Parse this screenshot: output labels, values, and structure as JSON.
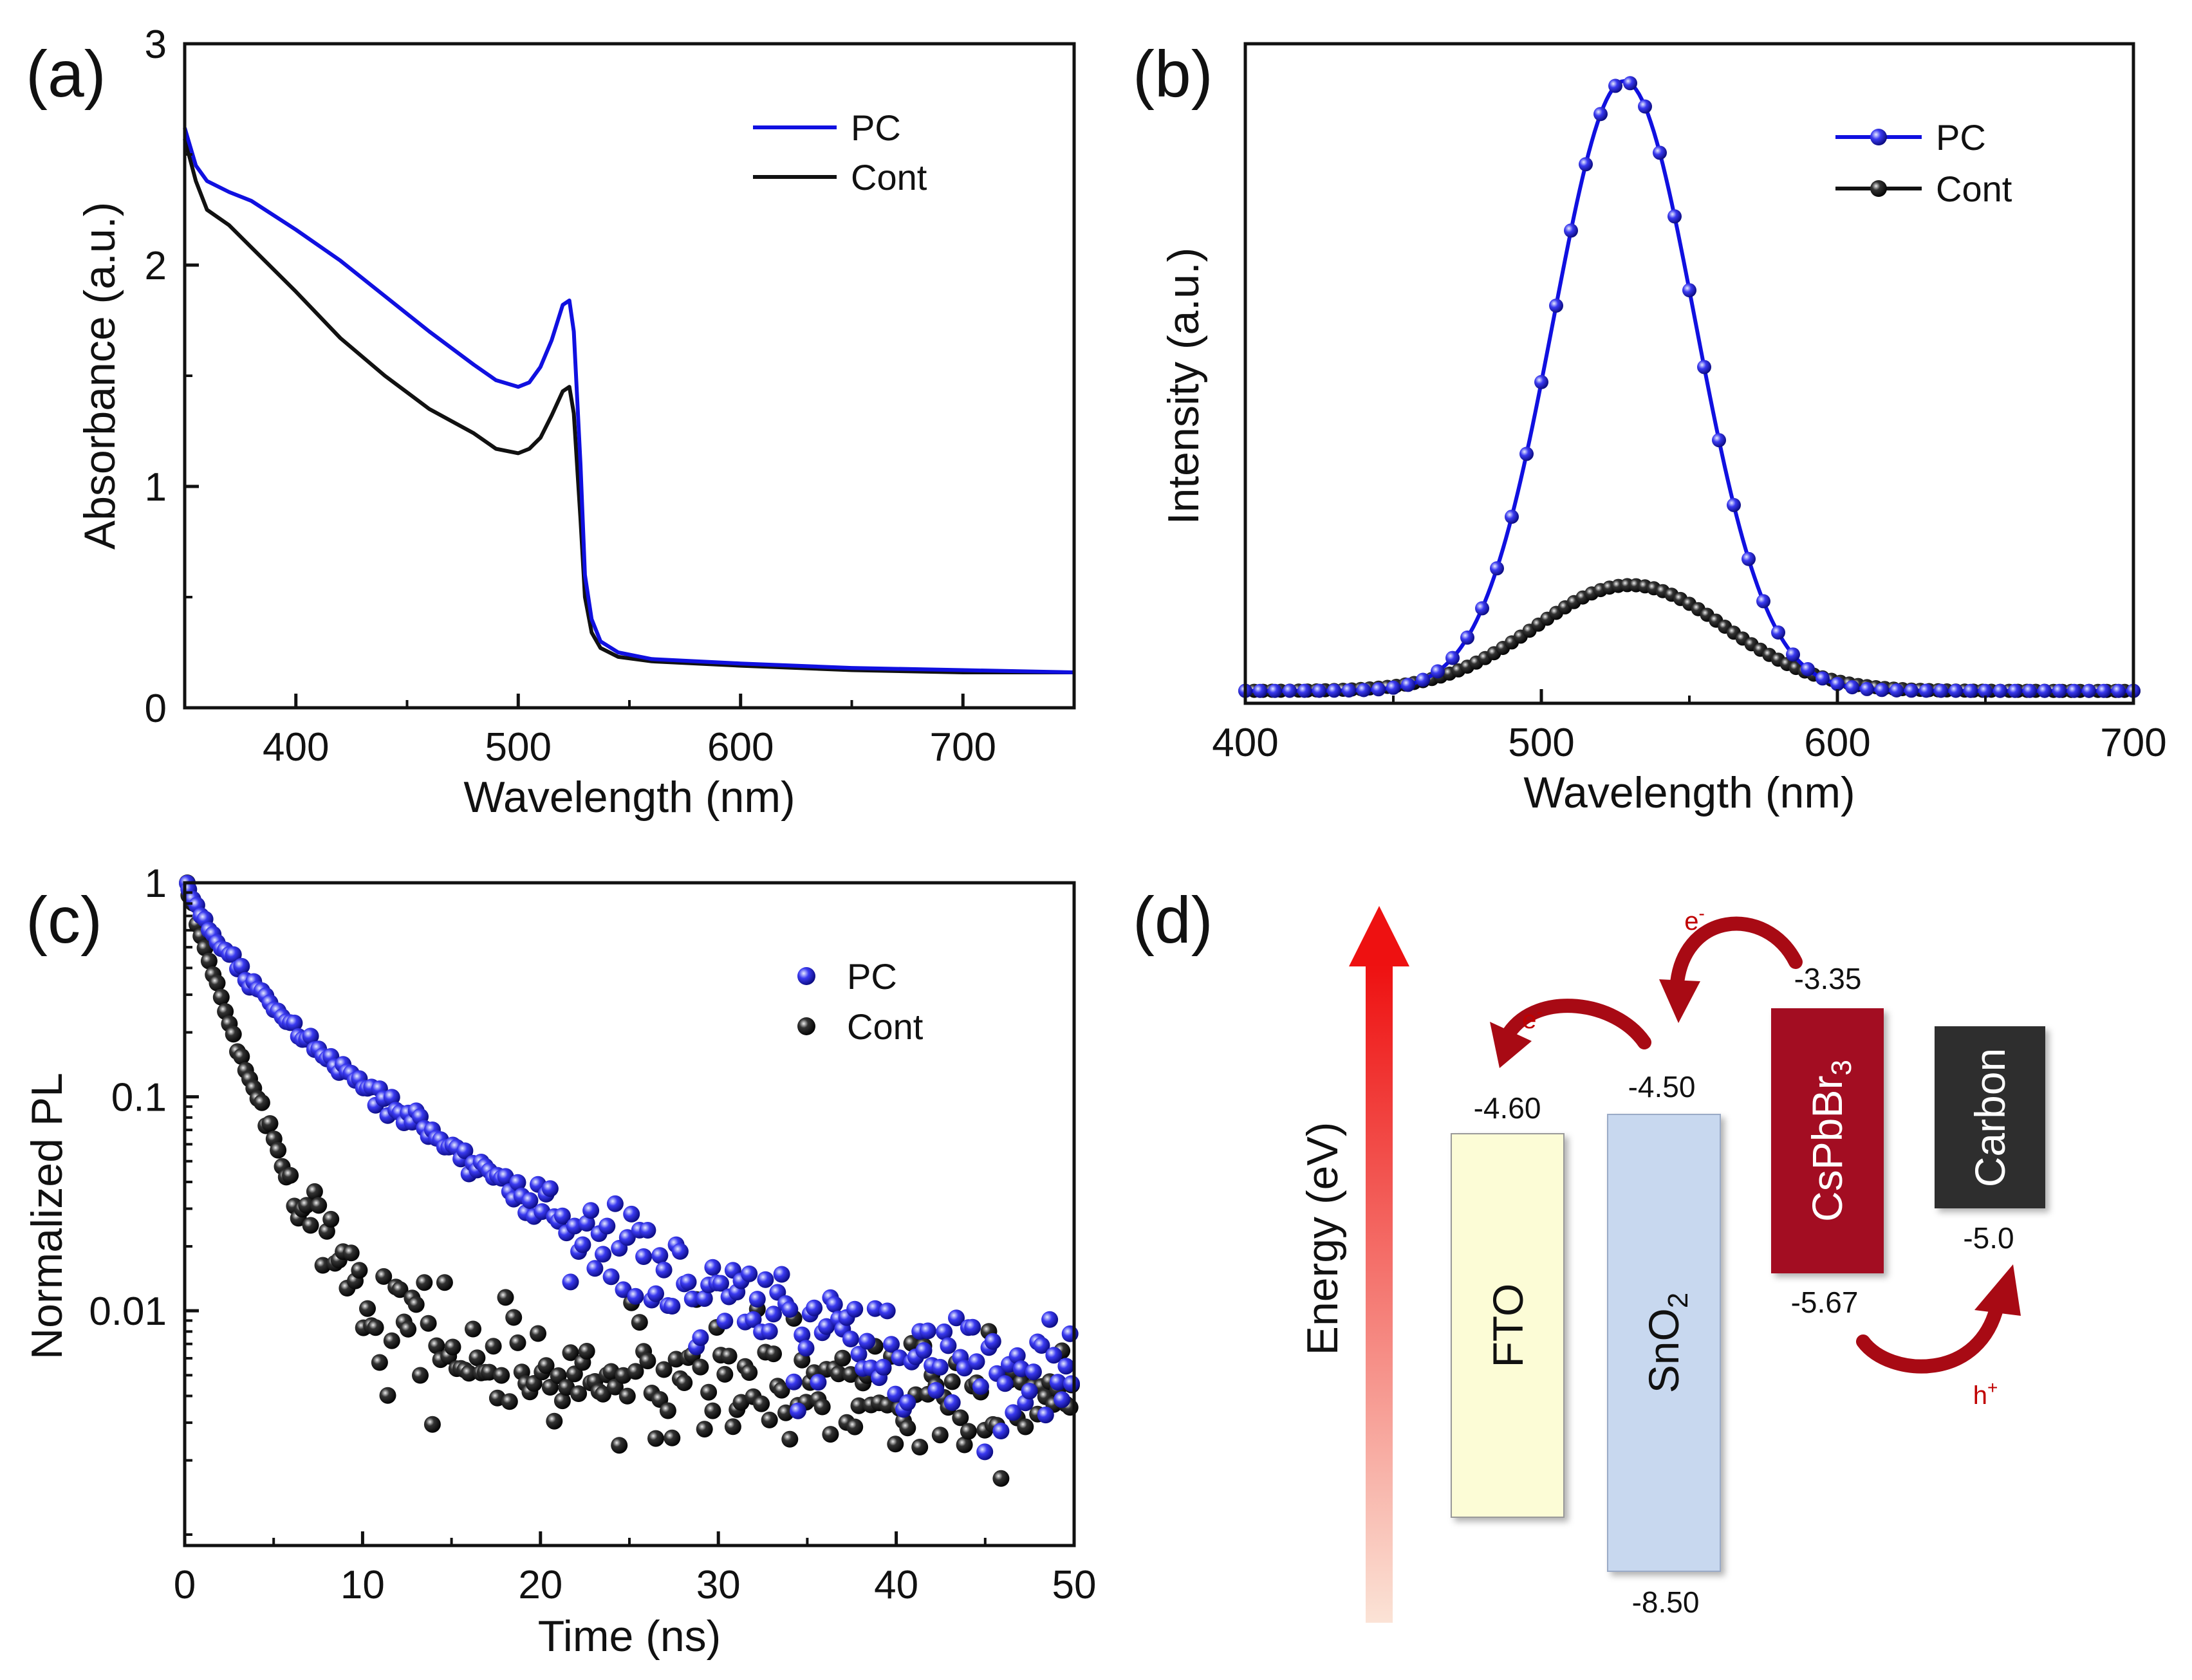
{
  "chart_data": [
    {
      "id": "a",
      "panel_label": "(a)",
      "type": "line",
      "xlabel": "Wavelength (nm)",
      "ylabel": "Absorbance (a.u.)",
      "xlim": [
        350,
        750
      ],
      "ylim": [
        0,
        3
      ],
      "xticks": [
        400,
        500,
        600,
        700
      ],
      "yticks": [
        0,
        1,
        2,
        3
      ],
      "legend_position": "top-right",
      "series": [
        {
          "name": "PC",
          "color": "#1010e0",
          "x": [
            350,
            355,
            360,
            370,
            380,
            400,
            420,
            440,
            460,
            480,
            490,
            500,
            505,
            510,
            515,
            520,
            523,
            525,
            528,
            530,
            533,
            537,
            545,
            560,
            600,
            650,
            700,
            750
          ],
          "y": [
            2.62,
            2.45,
            2.38,
            2.33,
            2.29,
            2.16,
            2.02,
            1.86,
            1.7,
            1.55,
            1.48,
            1.45,
            1.47,
            1.54,
            1.66,
            1.82,
            1.84,
            1.7,
            1.1,
            0.6,
            0.4,
            0.3,
            0.25,
            0.22,
            0.2,
            0.18,
            0.17,
            0.16
          ]
        },
        {
          "name": "Cont",
          "color": "#111111",
          "x": [
            350,
            355,
            360,
            370,
            380,
            400,
            420,
            440,
            460,
            480,
            490,
            500,
            505,
            510,
            515,
            520,
            523,
            525,
            528,
            530,
            533,
            537,
            545,
            560,
            600,
            650,
            700,
            750
          ],
          "y": [
            2.57,
            2.38,
            2.25,
            2.18,
            2.08,
            1.88,
            1.67,
            1.5,
            1.35,
            1.24,
            1.17,
            1.15,
            1.17,
            1.22,
            1.32,
            1.43,
            1.45,
            1.33,
            0.85,
            0.5,
            0.34,
            0.27,
            0.23,
            0.21,
            0.19,
            0.17,
            0.16,
            0.16
          ]
        }
      ]
    },
    {
      "id": "b",
      "panel_label": "(b)",
      "type": "line",
      "xlabel": "Wavelength (nm)",
      "ylabel": "Intensity (a.u.)",
      "xlim": [
        400,
        700
      ],
      "ylim": [
        0,
        1.06
      ],
      "xticks": [
        400,
        500,
        600,
        700
      ],
      "yticks": [],
      "legend_position": "top-right",
      "series": [
        {
          "name": "PC",
          "color": "#1010e0",
          "peak_x": 528,
          "peak_y": 1.0,
          "sigma": 24,
          "baseline": 0.02,
          "step": 5
        },
        {
          "name": "Cont",
          "color": "#111111",
          "peak_x": 530,
          "peak_y": 0.19,
          "sigma": 32,
          "baseline": 0.02,
          "step": 3
        }
      ]
    },
    {
      "id": "c",
      "panel_label": "(c)",
      "type": "scatter",
      "xlabel": "Time (ns)",
      "ylabel": "Normalized PL",
      "xlim": [
        0,
        50
      ],
      "ylim": [
        0.0008,
        1
      ],
      "yscale": "log",
      "xticks": [
        0,
        10,
        20,
        30,
        40,
        50
      ],
      "yticks": [
        1,
        0.1,
        0.01
      ],
      "ytick_labels": [
        "1",
        "0.1",
        "0.01"
      ],
      "legend_position": "top-right",
      "series": [
        {
          "name": "PC",
          "color": "#2828e6",
          "a1": 0.55,
          "tau1": 1.8,
          "a2": 0.45,
          "tau2": 7.0,
          "floor": 0.005,
          "noise": 0.3,
          "count": 220
        },
        {
          "name": "Cont",
          "color": "#1a1a1a",
          "a1": 0.85,
          "tau1": 1.4,
          "a2": 0.15,
          "tau2": 3.5,
          "floor": 0.0045,
          "noise": 0.35,
          "count": 220
        }
      ]
    }
  ],
  "panel_d": {
    "panel_label": "(d)",
    "axis_label": "Energy (eV)",
    "boxes": [
      {
        "name": "FTO",
        "label": "FTO",
        "top_level": "-4.60",
        "bottom_level": "",
        "top_ev": -4.6,
        "bottom_ev": -8.2,
        "color": "#fcfcd6"
      },
      {
        "name": "SnO2",
        "label": "SnO",
        "label_sub": "2",
        "top_level": "-4.50",
        "bottom_level": "-8.50",
        "top_ev": -4.5,
        "bottom_ev": -8.5,
        "color": "#c8d8ef"
      },
      {
        "name": "CsPbBr3",
        "label": "CsPbBr",
        "label_sub": "3",
        "top_level": "-3.35",
        "bottom_level": "-5.67",
        "top_ev": -3.35,
        "bottom_ev": -5.67,
        "color": "#a30c24"
      },
      {
        "name": "Carbon",
        "label": "Carbon",
        "top_level": "",
        "bottom_level": "-5.0",
        "top_ev": -3.5,
        "bottom_ev": -5.0,
        "color": "#2f2f2f"
      }
    ],
    "carriers": [
      {
        "name": "electron-1",
        "label": "e",
        "sup": "-"
      },
      {
        "name": "electron-2",
        "label": "e",
        "sup": "-"
      },
      {
        "name": "hole",
        "label": "h",
        "sup": "+"
      }
    ],
    "colors": {
      "arrow": "#a80a14",
      "energy_top": "#ee1111",
      "energy_bottom": "#fbe3d6"
    }
  }
}
